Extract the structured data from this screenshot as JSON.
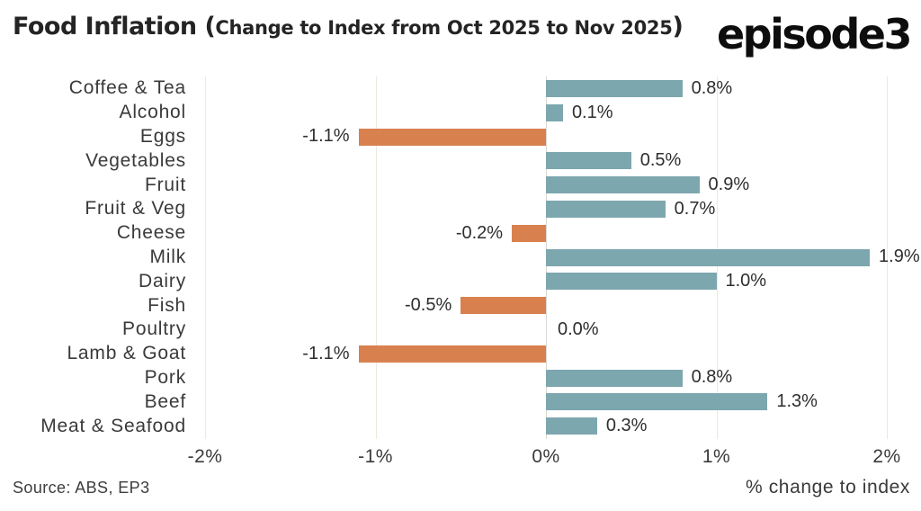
{
  "header": {
    "title_main": "Food Inflation (",
    "title_sub": "Change to Index from Oct 2025 to Nov 2025",
    "title_close": ")",
    "logo": "episode3"
  },
  "footer": {
    "source": "Source: ABS, EP3"
  },
  "chart_data": {
    "type": "bar",
    "orientation": "horizontal",
    "title": "Food Inflation (Change to Index from Oct 2025 to Nov 2025)",
    "categories": [
      "Coffee & Tea",
      "Alcohol",
      "Eggs",
      "Vegetables",
      "Fruit",
      "Fruit & Veg",
      "Cheese",
      "Milk",
      "Dairy",
      "Fish",
      "Poultry",
      "Lamb & Goat",
      "Pork",
      "Beef",
      "Meat & Seafood"
    ],
    "values": [
      0.8,
      0.1,
      -1.1,
      0.5,
      0.9,
      0.7,
      -0.2,
      1.9,
      1.0,
      -0.5,
      0.0,
      -1.1,
      0.8,
      1.3,
      0.3
    ],
    "value_labels": [
      "0.8%",
      "0.1%",
      "-1.1%",
      "0.5%",
      "0.9%",
      "0.7%",
      "-0.2%",
      "1.9%",
      "1.0%",
      "-0.5%",
      "0.0%",
      "-1.1%",
      "0.8%",
      "1.3%",
      "0.3%"
    ],
    "xlabel": "% change to index",
    "xlim": [
      -2,
      2
    ],
    "xticks": [
      -2,
      -1,
      0,
      1,
      2
    ],
    "xtick_labels": [
      "-2%",
      "-1%",
      "0%",
      "1%",
      "2%"
    ],
    "positive_color": "#7da7ae",
    "negative_color": "#d8814f",
    "gridline_color": "#ede9e1",
    "zero_line_color": "#dbd9d4",
    "grid": "vertical",
    "legend": "none"
  }
}
